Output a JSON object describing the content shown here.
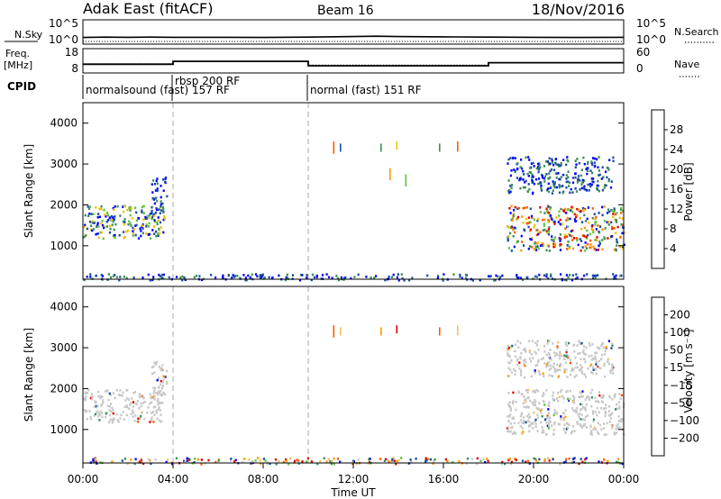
{
  "header": {
    "station": "Adak East (fitACF)",
    "beam": "Beam 16",
    "date": "18/Nov/2016"
  },
  "nsky_panel": {
    "left_label": "N.Sky",
    "right_label": "N.Search",
    "left_ticks": [
      "10^5",
      "10^0"
    ],
    "right_ticks": [
      "10^5",
      "10^0"
    ]
  },
  "freq_panel": {
    "left_label_line1": "Freq.",
    "left_label_line2": "[MHz]",
    "right_label": "Nave",
    "left_ticks": [
      "18",
      "8"
    ],
    "right_ticks": [
      "60",
      "0"
    ]
  },
  "cpid": {
    "label": "CPID",
    "programs": [
      {
        "name": "normalsound (fast) 157 RF",
        "start": 0
      },
      {
        "name": "rbsp 200 RF",
        "start": 4
      },
      {
        "name": "normal (fast) 151 RF",
        "start": 10
      }
    ]
  },
  "colors": {
    "frame": "#000000",
    "dashed": "#aaaaaa",
    "power": [
      "#0000ff",
      "#1a4ea0",
      "#3a8f5a",
      "#63c23c",
      "#f0c000",
      "#ff9900",
      "#ff5a00",
      "#e00000"
    ],
    "velocity": [
      "#e00000",
      "#ff5a00",
      "#ff9900",
      "#f4c060",
      "#c8c8c8",
      "#63c23c",
      "#3a8f5a",
      "#1a4ea0",
      "#0000ff"
    ]
  },
  "chart_data": [
    {
      "type": "line",
      "name": "N.Sky / N.Search",
      "x": [
        0,
        1,
        2,
        3,
        4,
        6,
        8,
        10,
        12,
        13,
        14,
        16,
        18,
        20,
        22,
        24
      ],
      "series": [
        {
          "name": "N.Sky",
          "values": [
            8,
            10,
            9,
            10,
            9,
            9,
            8,
            10,
            14,
            18,
            14,
            12,
            10,
            9,
            8,
            9
          ]
        },
        {
          "name": "N.Search",
          "values": [
            0,
            0,
            0,
            0,
            0,
            0,
            0,
            0,
            0,
            0,
            0,
            0,
            0,
            0,
            0,
            0
          ]
        }
      ],
      "ylim": [
        0,
        100000
      ],
      "yscale": "log"
    },
    {
      "type": "line",
      "name": "Frequency / Nave",
      "freq_steps": [
        {
          "start": 0,
          "end": 4,
          "value": 11.2
        },
        {
          "start": 4,
          "end": 10,
          "value": 12.7
        },
        {
          "start": 10,
          "end": 18,
          "value": 10.4
        },
        {
          "start": 18,
          "end": 24,
          "value": 12.0
        }
      ],
      "nave_steps": [
        {
          "start": 0,
          "end": 4,
          "value": 20
        },
        {
          "start": 4,
          "end": 10,
          "value": 28
        },
        {
          "start": 10,
          "end": 18,
          "value": 16
        },
        {
          "start": 18,
          "end": 24,
          "value": 24
        }
      ],
      "ylim": [
        8,
        18
      ],
      "y2lim": [
        0,
        60
      ]
    },
    {
      "type": "heatmap",
      "name": "power",
      "ylabel": "Slant Range [km]",
      "ylim": [
        180,
        4500
      ],
      "xlim": [
        0,
        24
      ],
      "yticks": [
        1000,
        2000,
        3000,
        4000
      ],
      "colorbar": {
        "label": "Power [dB]",
        "ticks": [
          4,
          8,
          12,
          16,
          20,
          24,
          28
        ],
        "range": [
          0,
          32
        ]
      },
      "regions": [
        {
          "t0": 0.0,
          "t1": 3.6,
          "r0": 1200,
          "r1": 2000,
          "level": "mid"
        },
        {
          "t0": 3.0,
          "t1": 3.7,
          "r0": 1800,
          "r1": 2700,
          "level": "low"
        },
        {
          "t0": 18.8,
          "t1": 24.0,
          "r0": 900,
          "r1": 2000,
          "level": "high"
        },
        {
          "t0": 18.8,
          "t1": 23.5,
          "r0": 2300,
          "r1": 3200,
          "level": "low"
        },
        {
          "t0": 0.0,
          "t1": 24.0,
          "r0": 180,
          "r1": 330,
          "level": "low"
        }
      ],
      "streaks": [
        {
          "t": 11.1,
          "r0": 3250,
          "r1": 3550
        },
        {
          "t": 11.4,
          "r0": 3300,
          "r1": 3500
        },
        {
          "t": 13.2,
          "r0": 3300,
          "r1": 3500
        },
        {
          "t": 13.9,
          "r0": 3350,
          "r1": 3550
        },
        {
          "t": 15.8,
          "r0": 3300,
          "r1": 3500
        },
        {
          "t": 16.6,
          "r0": 3300,
          "r1": 3550
        },
        {
          "t": 13.6,
          "r0": 2600,
          "r1": 2900
        },
        {
          "t": 14.3,
          "r0": 2450,
          "r1": 2750
        }
      ]
    },
    {
      "type": "heatmap",
      "name": "velocity",
      "ylabel": "Slant Range [km]",
      "xlabel": "Time UT",
      "ylim": [
        180,
        4500
      ],
      "xlim": [
        0,
        24
      ],
      "yticks": [
        1000,
        2000,
        3000,
        4000
      ],
      "xticks": [
        "00:00",
        "04:00",
        "08:00",
        "12:00",
        "16:00",
        "20:00",
        "00:00"
      ],
      "colorbar": {
        "label": "Velocity [m s⁻¹]",
        "ticks": [
          200,
          100,
          50,
          15,
          -15,
          -50,
          -100,
          -200
        ]
      },
      "regions": [
        {
          "t0": 0.0,
          "t1": 3.6,
          "r0": 1200,
          "r1": 2000,
          "level": "zero"
        },
        {
          "t0": 3.0,
          "t1": 3.7,
          "r0": 1800,
          "r1": 2700,
          "level": "zero"
        },
        {
          "t0": 18.8,
          "t1": 24.0,
          "r0": 900,
          "r1": 2000,
          "level": "zero"
        },
        {
          "t0": 18.8,
          "t1": 23.5,
          "r0": 2300,
          "r1": 3200,
          "level": "zero"
        },
        {
          "t0": 0.0,
          "t1": 24.0,
          "r0": 180,
          "r1": 330,
          "level": "mixed"
        }
      ],
      "streaks": [
        {
          "t": 11.1,
          "r0": 3250,
          "r1": 3550
        },
        {
          "t": 11.4,
          "r0": 3300,
          "r1": 3500
        },
        {
          "t": 13.2,
          "r0": 3300,
          "r1": 3500
        },
        {
          "t": 13.9,
          "r0": 3350,
          "r1": 3550
        },
        {
          "t": 15.8,
          "r0": 3300,
          "r1": 3500
        },
        {
          "t": 16.6,
          "r0": 3300,
          "r1": 3550
        }
      ]
    }
  ]
}
